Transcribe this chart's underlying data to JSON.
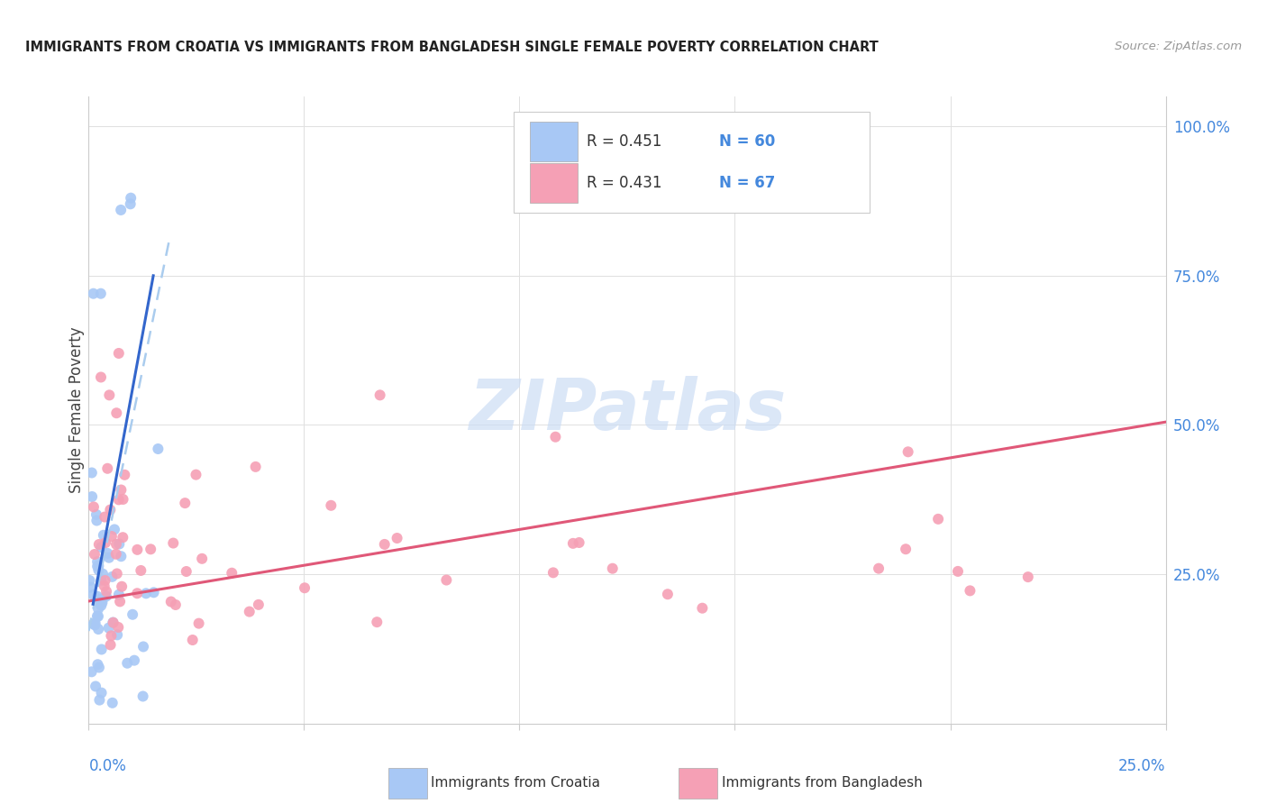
{
  "title": "IMMIGRANTS FROM CROATIA VS IMMIGRANTS FROM BANGLADESH SINGLE FEMALE POVERTY CORRELATION CHART",
  "source": "Source: ZipAtlas.com",
  "ylabel": "Single Female Poverty",
  "croatia_color": "#a8c8f5",
  "bangladesh_color": "#f5a0b5",
  "croatia_line_color": "#3366cc",
  "bangladesh_line_color": "#e05878",
  "croatia_dashed_color": "#aaccee",
  "watermark_color": "#ccddf5",
  "background_color": "#ffffff",
  "grid_color": "#e0e0e0",
  "ytick_color": "#4488dd",
  "xlabel_color": "#4488dd",
  "title_color": "#222222",
  "source_color": "#999999",
  "legend_text_color": "#333333",
  "legend_N_color": "#4488dd",
  "xlim": [
    0.0,
    0.25
  ],
  "ylim": [
    0.0,
    1.05
  ],
  "yticks": [
    0.0,
    0.25,
    0.5,
    0.75,
    1.0
  ],
  "ytick_labels": [
    "",
    "25.0%",
    "50.0%",
    "75.0%",
    "100.0%"
  ],
  "xticks": [
    0.0,
    0.05,
    0.1,
    0.15,
    0.2,
    0.25
  ],
  "croatia_R": "0.451",
  "croatia_N": "60",
  "bangladesh_R": "0.431",
  "bangladesh_N": "67",
  "croatia_line_x0": 0.0,
  "croatia_line_y0": 0.155,
  "croatia_line_x1": 0.019,
  "croatia_line_y1": 0.82,
  "bangladesh_line_x0": 0.0,
  "bangladesh_line_y0": 0.205,
  "bangladesh_line_x1": 0.25,
  "bangladesh_line_y1": 0.505
}
